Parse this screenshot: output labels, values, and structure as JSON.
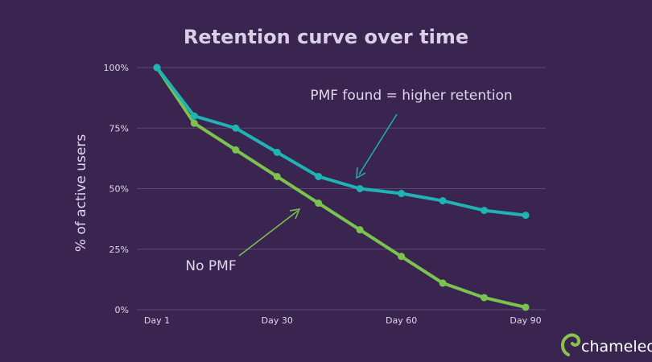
{
  "chart_data": {
    "type": "line",
    "title": "Retention curve over time",
    "ylabel": "% of active users",
    "xlabel": "",
    "x": [
      1,
      10,
      20,
      30,
      40,
      50,
      60,
      70,
      80,
      90
    ],
    "x_ticks": [
      {
        "value": 1,
        "label": "Day 1"
      },
      {
        "value": 30,
        "label": "Day 30"
      },
      {
        "value": 60,
        "label": "Day 60"
      },
      {
        "value": 90,
        "label": "Day 90"
      }
    ],
    "y_ticks": [
      {
        "value": 0,
        "label": "0%"
      },
      {
        "value": 25,
        "label": "25%"
      },
      {
        "value": 50,
        "label": "50%"
      },
      {
        "value": 75,
        "label": "75%"
      },
      {
        "value": 100,
        "label": "100%"
      }
    ],
    "xlim": [
      1,
      90
    ],
    "ylim": [
      0,
      100
    ],
    "grid": true,
    "series": [
      {
        "values": [
          100,
          80,
          75,
          65,
          55,
          50,
          48,
          45,
          41,
          39
        ],
        "color": "#1fb3b3"
      },
      {
        "values": [
          100,
          77,
          66,
          55,
          44,
          33,
          22,
          11,
          5,
          1
        ],
        "color": "#7cc24e"
      }
    ],
    "annotations": [
      {
        "text": "PMF found = higher retention",
        "series_index": 0
      },
      {
        "text": "No PMF",
        "series_index": 1
      }
    ]
  },
  "brand": {
    "name": "chameleon",
    "color": "#8bc34a"
  },
  "colors": {
    "background": "#3a2550",
    "grid": "#5a4670",
    "text": "#e0d6ea",
    "title": "#d9cfe6"
  }
}
